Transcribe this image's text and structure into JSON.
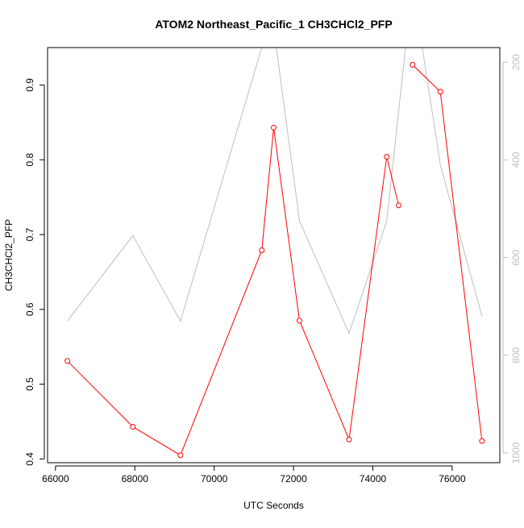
{
  "chart_data": {
    "type": "line",
    "title": "ATOM2 Northeast_Pacific_1 CH3CHCl2_PFP",
    "xlabel": "UTC Seconds",
    "ylabel": "CH3CHCl2_PFP",
    "xlim": [
      65800,
      77200
    ],
    "ylim": [
      0.395,
      0.95
    ],
    "x_ticks": [
      66000,
      68000,
      70000,
      72000,
      74000,
      76000
    ],
    "x_tick_labels": [
      "66000",
      "68000",
      "70000",
      "72000",
      "74000",
      "76000"
    ],
    "y_ticks": [
      0.4,
      0.5,
      0.6,
      0.7,
      0.8,
      0.9
    ],
    "y_tick_labels": [
      "0.4",
      "0.5",
      "0.6",
      "0.7",
      "0.8",
      "0.9"
    ],
    "y2lim": [
      1020,
      170
    ],
    "y2_ticks": [
      200,
      400,
      600,
      800,
      1000
    ],
    "y2_tick_labels": [
      "200",
      "400",
      "600",
      "800",
      "1000"
    ],
    "grid": false,
    "colors": {
      "primary": "#ff0000",
      "secondary": "#bebebe",
      "axis": "#000000",
      "right_axis": "#bebebe"
    },
    "series": [
      {
        "axis": "left",
        "color": "#ff0000",
        "marker": "open-circle",
        "x": [
          66300,
          67950,
          69150,
          71200,
          71500,
          72150,
          73400,
          74350,
          74650,
          75000,
          75700,
          76750
        ],
        "y": [
          0.531,
          0.443,
          0.405,
          0.679,
          0.843,
          0.585,
          0.426,
          0.804,
          0.739,
          0.927,
          0.891,
          0.424
        ],
        "segments": [
          [
            0,
            1,
            2,
            3,
            4,
            5,
            6,
            7,
            8
          ],
          [
            9,
            10,
            11
          ]
        ]
      },
      {
        "axis": "right",
        "color": "#bebebe",
        "marker": "none",
        "x": [
          66300,
          67950,
          69150,
          71200,
          71500,
          72150,
          73400,
          74350,
          74650,
          75000,
          75700,
          76750
        ],
        "y": [
          730,
          555,
          730,
          170,
          130,
          525,
          755,
          525,
          300,
          40,
          410,
          720
        ],
        "segments": [
          [
            0,
            1,
            2,
            3,
            4,
            5,
            6,
            7,
            8,
            9,
            10,
            11
          ]
        ]
      }
    ]
  }
}
